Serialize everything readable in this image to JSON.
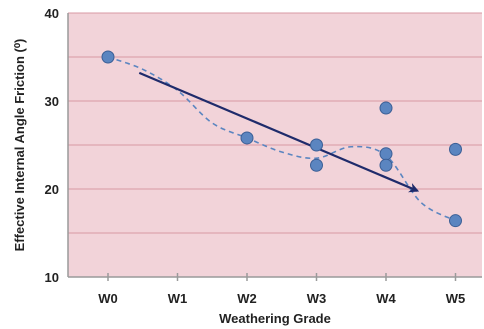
{
  "chart_data": {
    "type": "scatter",
    "title": "",
    "xlabel": "Weathering Grade",
    "ylabel": "Effective Internal Angle Friction (⁰)",
    "categories": [
      "W0",
      "W1",
      "W2",
      "W3",
      "W4",
      "W5"
    ],
    "ylim": [
      10,
      40
    ],
    "yticks": [
      "10",
      "20",
      "30",
      "40"
    ],
    "grid": "horizontal",
    "series": [
      {
        "points": [
          {
            "x": "W0",
            "y": 35.0
          },
          {
            "x": "W2",
            "y": 25.8
          },
          {
            "x": "W3",
            "y": 25.0
          },
          {
            "x": "W3",
            "y": 22.7
          },
          {
            "x": "W4",
            "y": 29.2
          },
          {
            "x": "W4",
            "y": 24.0
          },
          {
            "x": "W4",
            "y": 22.7
          },
          {
            "x": "W5",
            "y": 24.5
          },
          {
            "x": "W5",
            "y": 16.4
          }
        ]
      }
    ],
    "trend_curve": {
      "style": "dashed",
      "points": [
        {
          "x": 0.0,
          "y": 35.0
        },
        {
          "x": 0.5,
          "y": 33.6
        },
        {
          "x": 1.0,
          "y": 31.2
        },
        {
          "x": 1.5,
          "y": 27.5
        },
        {
          "x": 2.0,
          "y": 25.8
        },
        {
          "x": 2.5,
          "y": 24.2
        },
        {
          "x": 3.0,
          "y": 23.5
        },
        {
          "x": 3.5,
          "y": 24.8
        },
        {
          "x": 4.0,
          "y": 23.8
        },
        {
          "x": 4.5,
          "y": 18.5
        },
        {
          "x": 5.0,
          "y": 16.4
        }
      ]
    },
    "trend_arrow": {
      "from": {
        "x": 0.45,
        "y": 33.2
      },
      "to": {
        "x": 4.45,
        "y": 19.8
      }
    },
    "colors": {
      "plot_background": "#f2d3d9",
      "grid": "#d89aa4",
      "marker": "#5b85c0",
      "marker_edge": "#3b5f96",
      "curve": "#5b85c0",
      "arrow": "#1f2b6b",
      "axis": "#9a9a9a"
    }
  }
}
